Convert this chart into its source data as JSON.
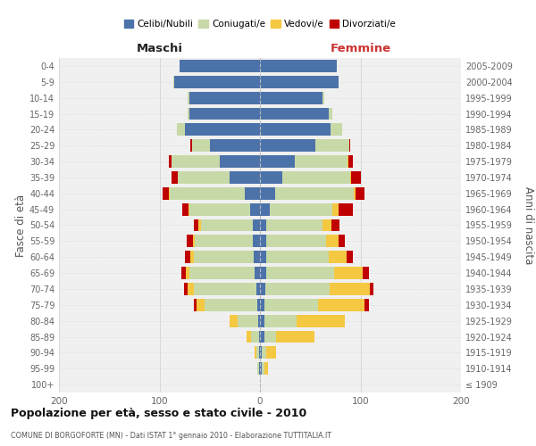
{
  "age_groups": [
    "100+",
    "95-99",
    "90-94",
    "85-89",
    "80-84",
    "75-79",
    "70-74",
    "65-69",
    "60-64",
    "55-59",
    "50-54",
    "45-49",
    "40-44",
    "35-39",
    "30-34",
    "25-29",
    "20-24",
    "15-19",
    "10-14",
    "5-9",
    "0-4"
  ],
  "birth_years": [
    "≤ 1909",
    "1910-1914",
    "1915-1919",
    "1920-1924",
    "1925-1929",
    "1930-1934",
    "1935-1939",
    "1940-1944",
    "1945-1949",
    "1950-1954",
    "1955-1959",
    "1960-1964",
    "1965-1969",
    "1970-1974",
    "1975-1979",
    "1980-1984",
    "1985-1989",
    "1990-1994",
    "1995-1999",
    "2000-2004",
    "2005-2009"
  ],
  "colors": {
    "celibi": "#4C72AA",
    "coniugati": "#C8D9A8",
    "vedovi": "#F5C842",
    "divorziati": "#C00000"
  },
  "males": {
    "celibi": [
      0,
      1,
      1,
      1,
      2,
      3,
      4,
      5,
      6,
      7,
      7,
      10,
      15,
      30,
      40,
      50,
      75,
      70,
      70,
      85,
      80
    ],
    "coniugati": [
      0,
      2,
      3,
      8,
      20,
      52,
      62,
      65,
      60,
      58,
      52,
      60,
      75,
      52,
      48,
      18,
      8,
      2,
      2,
      1,
      0
    ],
    "vedovi": [
      0,
      0,
      1,
      4,
      8,
      8,
      6,
      4,
      3,
      2,
      2,
      1,
      1,
      0,
      0,
      0,
      0,
      0,
      0,
      0,
      0
    ],
    "divorziati": [
      0,
      0,
      0,
      0,
      0,
      3,
      4,
      4,
      6,
      6,
      5,
      6,
      6,
      6,
      3,
      1,
      0,
      0,
      0,
      0,
      0
    ]
  },
  "females": {
    "celibi": [
      0,
      2,
      2,
      4,
      4,
      4,
      5,
      6,
      6,
      6,
      6,
      10,
      15,
      22,
      35,
      55,
      70,
      68,
      62,
      78,
      76
    ],
    "coniugati": [
      0,
      2,
      4,
      12,
      32,
      54,
      64,
      68,
      62,
      60,
      56,
      62,
      78,
      68,
      52,
      34,
      12,
      4,
      2,
      0,
      0
    ],
    "vedovi": [
      0,
      4,
      10,
      38,
      48,
      46,
      40,
      28,
      18,
      12,
      9,
      6,
      2,
      1,
      1,
      0,
      0,
      0,
      0,
      0,
      0
    ],
    "divorziati": [
      0,
      0,
      0,
      0,
      0,
      4,
      4,
      6,
      6,
      6,
      8,
      14,
      9,
      9,
      4,
      1,
      0,
      0,
      0,
      0,
      0
    ]
  },
  "title": "Popolazione per età, sesso e stato civile - 2010",
  "subtitle": "COMUNE DI BORGOFORTE (MN) - Dati ISTAT 1° gennaio 2010 - Elaborazione TUTTITALIA.IT",
  "ylabel_left": "Fasce di età",
  "ylabel_right": "Anni di nascita",
  "xlabel_left": "Maschi",
  "xlabel_right": "Femmine",
  "xlim": 200,
  "legend_labels": [
    "Celibi/Nubili",
    "Coniugati/e",
    "Vedovi/e",
    "Divorziati/e"
  ],
  "bg_color": "#f0f0f0",
  "grid_color": "#cccccc"
}
